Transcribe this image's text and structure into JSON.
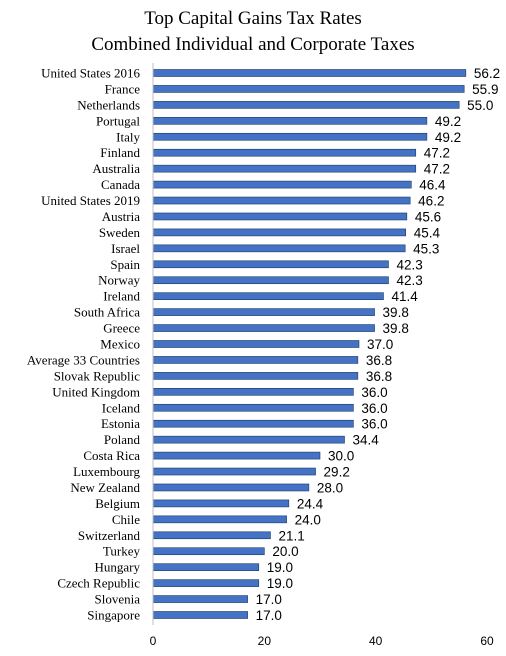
{
  "chart_data": {
    "type": "bar",
    "orientation": "horizontal",
    "title": [
      "Top Capital Gains Tax Rates",
      "Combined Individual  and Corporate Taxes"
    ],
    "categories": [
      "United States 2016",
      "France",
      "Netherlands",
      "Portugal",
      "Italy",
      "Finland",
      "Australia",
      "Canada",
      "United States 2019",
      "Austria",
      "Sweden",
      "Israel",
      "Spain",
      "Norway",
      "Ireland",
      "South Africa",
      "Greece",
      "Mexico",
      "Average 33 Countries",
      "Slovak Republic",
      "United Kingdom",
      "Iceland",
      "Estonia",
      "Poland",
      "Costa Rica",
      "Luxembourg",
      "New Zealand",
      "Belgium",
      "Chile",
      "Switzerland",
      "Turkey",
      "Hungary",
      "Czech Republic",
      "Slovenia",
      "Singapore"
    ],
    "values": [
      56.2,
      55.9,
      55.0,
      49.2,
      49.2,
      47.2,
      47.2,
      46.4,
      46.2,
      45.6,
      45.4,
      45.3,
      42.3,
      42.3,
      41.4,
      39.8,
      39.8,
      37.0,
      36.8,
      36.8,
      36.0,
      36.0,
      36.0,
      34.4,
      30.0,
      29.2,
      28.0,
      24.4,
      24.0,
      21.1,
      20.0,
      19.0,
      19.0,
      17.0,
      17.0
    ],
    "value_labels": [
      "56.2",
      "55.9",
      "55.0",
      "49.2",
      "49.2",
      "47.2",
      "47.2",
      "46.4",
      "46.2",
      "45.6",
      "45.4",
      "45.3",
      "42.3",
      "42.3",
      "41.4",
      "39.8",
      "39.8",
      "37.0",
      "36.8",
      "36.8",
      "36.0",
      "36.0",
      "36.0",
      "34.4",
      "30.0",
      "29.2",
      "28.0",
      "24.4",
      "24.0",
      "21.1",
      "20.0",
      "19.0",
      "19.0",
      "17.0",
      "17.0"
    ],
    "xlim": [
      0,
      60
    ],
    "xticks": [
      "0",
      "20",
      "40",
      "60"
    ],
    "bar_color": "#4472C4",
    "bar_edge_color": "#1F3864",
    "grid": false,
    "legend": "none"
  }
}
